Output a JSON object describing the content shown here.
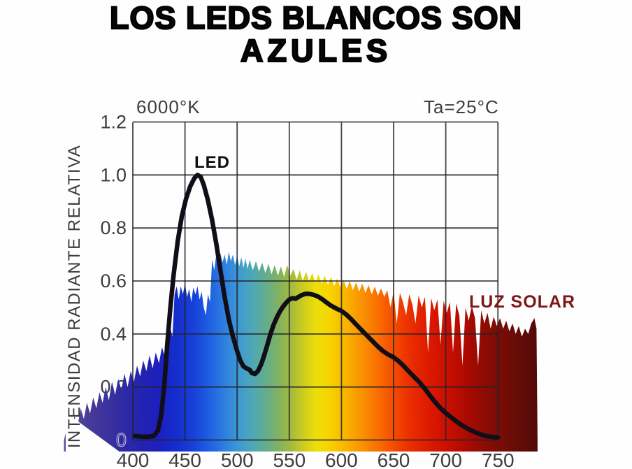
{
  "title": {
    "line1": "LOS LEDS BLANCOS SON",
    "line2": "AZULES"
  },
  "annotations": {
    "color_temp": "6000°K",
    "ambient_temp": "Ta=25°C",
    "led": "LED",
    "solar": "LUZ SOLAR"
  },
  "axis": {
    "y_label": "INTENSIDAD RADIANTE RELATIVA"
  },
  "colors": {
    "title_text": "#070707",
    "axis_text": "#3d3d3d",
    "grid": "#23232d",
    "led_curve": "#120e18",
    "solar_label": "#7d1818",
    "background": "#fefefe"
  },
  "chart_data": {
    "type": "area",
    "title": "LOS LEDS BLANCOS SON AZULES",
    "ylabel": "INTENSIDAD RADIANTE RELATIVA",
    "x_range": [
      400,
      750
    ],
    "y_range": [
      0,
      1.2
    ],
    "grid": true,
    "x_ticks": [
      400,
      450,
      500,
      550,
      600,
      650,
      700,
      750
    ],
    "y_ticks": [
      1.2,
      1.0,
      0.8,
      0.6,
      0.4,
      0.2,
      0
    ],
    "y_tick_labels": [
      "1.2",
      "1.0",
      "0.8",
      "0.6",
      "0.4",
      "0.2",
      "0"
    ],
    "series": [
      {
        "name": "LED",
        "type": "line",
        "color": "#120e18",
        "points": [
          [
            402,
            0.015
          ],
          [
            408,
            0.013
          ],
          [
            414,
            0.012
          ],
          [
            420,
            0.015
          ],
          [
            424,
            0.035
          ],
          [
            427,
            0.09
          ],
          [
            430,
            0.2
          ],
          [
            433,
            0.36
          ],
          [
            436,
            0.5
          ],
          [
            439,
            0.62
          ],
          [
            443,
            0.75
          ],
          [
            447,
            0.845
          ],
          [
            451,
            0.91
          ],
          [
            455,
            0.957
          ],
          [
            459,
            0.988
          ],
          [
            462,
            1.0
          ],
          [
            465,
            0.993
          ],
          [
            468,
            0.962
          ],
          [
            472,
            0.905
          ],
          [
            476,
            0.83
          ],
          [
            480,
            0.74
          ],
          [
            484,
            0.64
          ],
          [
            488,
            0.54
          ],
          [
            492,
            0.455
          ],
          [
            496,
            0.39
          ],
          [
            500,
            0.335
          ],
          [
            503,
            0.3
          ],
          [
            506,
            0.278
          ],
          [
            509,
            0.27
          ],
          [
            512,
            0.265
          ],
          [
            514,
            0.253
          ],
          [
            517,
            0.249
          ],
          [
            520,
            0.26
          ],
          [
            523,
            0.285
          ],
          [
            526,
            0.32
          ],
          [
            529,
            0.36
          ],
          [
            532,
            0.4
          ],
          [
            535,
            0.435
          ],
          [
            538,
            0.462
          ],
          [
            541,
            0.485
          ],
          [
            544,
            0.503
          ],
          [
            547,
            0.518
          ],
          [
            550,
            0.53
          ],
          [
            553,
            0.535
          ],
          [
            556,
            0.533
          ],
          [
            559,
            0.54
          ],
          [
            562,
            0.547
          ],
          [
            566,
            0.552
          ],
          [
            570,
            0.551
          ],
          [
            574,
            0.547
          ],
          [
            578,
            0.54
          ],
          [
            582,
            0.53
          ],
          [
            586,
            0.518
          ],
          [
            590,
            0.507
          ],
          [
            595,
            0.496
          ],
          [
            600,
            0.487
          ],
          [
            605,
            0.472
          ],
          [
            610,
            0.453
          ],
          [
            615,
            0.432
          ],
          [
            620,
            0.412
          ],
          [
            625,
            0.392
          ],
          [
            630,
            0.372
          ],
          [
            635,
            0.352
          ],
          [
            640,
            0.335
          ],
          [
            645,
            0.322
          ],
          [
            650,
            0.312
          ],
          [
            655,
            0.297
          ],
          [
            660,
            0.278
          ],
          [
            665,
            0.257
          ],
          [
            670,
            0.237
          ],
          [
            675,
            0.217
          ],
          [
            680,
            0.193
          ],
          [
            685,
            0.167
          ],
          [
            690,
            0.142
          ],
          [
            695,
            0.12
          ],
          [
            700,
            0.102
          ],
          [
            705,
            0.086
          ],
          [
            710,
            0.071
          ],
          [
            715,
            0.057
          ],
          [
            720,
            0.045
          ],
          [
            725,
            0.035
          ],
          [
            730,
            0.026
          ],
          [
            735,
            0.019
          ],
          [
            740,
            0.014
          ],
          [
            745,
            0.011
          ],
          [
            750,
            0.01
          ]
        ]
      },
      {
        "name": "LUZ SOLAR",
        "type": "area",
        "points": [
          [
            334,
            0
          ],
          [
            338,
            0.06
          ],
          [
            341,
            0.03
          ],
          [
            344,
            0.09
          ],
          [
            347,
            0.05
          ],
          [
            350,
            0.12
          ],
          [
            353,
            0.08
          ],
          [
            356,
            0.14
          ],
          [
            359,
            0.1
          ],
          [
            362,
            0.16
          ],
          [
            365,
            0.12
          ],
          [
            368,
            0.18
          ],
          [
            371,
            0.14
          ],
          [
            374,
            0.2
          ],
          [
            377,
            0.15
          ],
          [
            380,
            0.22
          ],
          [
            383,
            0.17
          ],
          [
            386,
            0.23
          ],
          [
            389,
            0.19
          ],
          [
            392,
            0.25
          ],
          [
            395,
            0.2
          ],
          [
            398,
            0.26
          ],
          [
            401,
            0.22
          ],
          [
            404,
            0.28
          ],
          [
            407,
            0.24
          ],
          [
            410,
            0.3
          ],
          [
            413,
            0.26
          ],
          [
            416,
            0.32
          ],
          [
            419,
            0.27
          ],
          [
            422,
            0.33
          ],
          [
            425,
            0.29
          ],
          [
            428,
            0.35
          ],
          [
            431,
            0.31
          ],
          [
            434,
            0.37
          ],
          [
            436,
            0.42
          ],
          [
            438,
            0.39
          ],
          [
            440,
            0.55
          ],
          [
            442,
            0.58
          ],
          [
            444,
            0.53
          ],
          [
            446,
            0.58
          ],
          [
            448,
            0.55
          ],
          [
            450,
            0.59
          ],
          [
            452,
            0.54
          ],
          [
            454,
            0.57
          ],
          [
            456,
            0.52
          ],
          [
            458,
            0.575
          ],
          [
            460,
            0.55
          ],
          [
            462,
            0.58
          ],
          [
            464,
            0.53
          ],
          [
            466,
            0.56
          ],
          [
            468,
            0.5
          ],
          [
            470,
            0.47
          ],
          [
            472,
            0.55
          ],
          [
            474,
            0.52
          ],
          [
            476,
            0.68
          ],
          [
            478,
            0.64
          ],
          [
            480,
            0.7
          ],
          [
            482,
            0.66
          ],
          [
            484,
            0.705
          ],
          [
            486,
            0.67
          ],
          [
            488,
            0.7
          ],
          [
            490,
            0.66
          ],
          [
            492,
            0.71
          ],
          [
            494,
            0.675
          ],
          [
            496,
            0.7
          ],
          [
            498,
            0.66
          ],
          [
            500,
            0.695
          ],
          [
            502,
            0.655
          ],
          [
            504,
            0.69
          ],
          [
            506,
            0.65
          ],
          [
            508,
            0.685
          ],
          [
            510,
            0.645
          ],
          [
            512,
            0.68
          ],
          [
            515,
            0.64
          ],
          [
            518,
            0.675
          ],
          [
            521,
            0.635
          ],
          [
            524,
            0.67
          ],
          [
            527,
            0.63
          ],
          [
            530,
            0.665
          ],
          [
            533,
            0.625
          ],
          [
            536,
            0.66
          ],
          [
            539,
            0.62
          ],
          [
            542,
            0.655
          ],
          [
            545,
            0.615
          ],
          [
            548,
            0.66
          ],
          [
            551,
            0.62
          ],
          [
            554,
            0.645
          ],
          [
            557,
            0.605
          ],
          [
            560,
            0.64
          ],
          [
            563,
            0.6
          ],
          [
            566,
            0.635
          ],
          [
            569,
            0.6
          ],
          [
            572,
            0.63
          ],
          [
            575,
            0.595
          ],
          [
            578,
            0.625
          ],
          [
            581,
            0.59
          ],
          [
            584,
            0.62
          ],
          [
            587,
            0.585
          ],
          [
            590,
            0.615
          ],
          [
            593,
            0.58
          ],
          [
            596,
            0.61
          ],
          [
            599,
            0.575
          ],
          [
            602,
            0.605
          ],
          [
            605,
            0.57
          ],
          [
            608,
            0.6
          ],
          [
            611,
            0.565
          ],
          [
            614,
            0.595
          ],
          [
            617,
            0.56
          ],
          [
            620,
            0.59
          ],
          [
            623,
            0.555
          ],
          [
            626,
            0.585
          ],
          [
            629,
            0.55
          ],
          [
            632,
            0.578
          ],
          [
            635,
            0.545
          ],
          [
            638,
            0.572
          ],
          [
            641,
            0.54
          ],
          [
            644,
            0.565
          ],
          [
            647,
            0.5
          ],
          [
            650,
            0.56
          ],
          [
            653,
            0.44
          ],
          [
            656,
            0.555
          ],
          [
            659,
            0.52
          ],
          [
            662,
            0.47
          ],
          [
            665,
            0.55
          ],
          [
            668,
            0.51
          ],
          [
            671,
            0.44
          ],
          [
            674,
            0.545
          ],
          [
            677,
            0.5
          ],
          [
            680,
            0.54
          ],
          [
            683,
            0.33
          ],
          [
            686,
            0.535
          ],
          [
            689,
            0.49
          ],
          [
            692,
            0.53
          ],
          [
            695,
            0.36
          ],
          [
            698,
            0.525
          ],
          [
            701,
            0.48
          ],
          [
            704,
            0.52
          ],
          [
            707,
            0.33
          ],
          [
            710,
            0.515
          ],
          [
            713,
            0.47
          ],
          [
            716,
            0.28
          ],
          [
            719,
            0.5
          ],
          [
            722,
            0.45
          ],
          [
            725,
            0.505
          ],
          [
            728,
            0.46
          ],
          [
            731,
            0.28
          ],
          [
            734,
            0.49
          ],
          [
            737,
            0.44
          ],
          [
            740,
            0.48
          ],
          [
            743,
            0.42
          ],
          [
            746,
            0.465
          ],
          [
            749,
            0.43
          ],
          [
            752,
            0.46
          ],
          [
            755,
            0.42
          ],
          [
            758,
            0.45
          ],
          [
            761,
            0.41
          ],
          [
            764,
            0.44
          ],
          [
            767,
            0.4
          ],
          [
            770,
            0.43
          ],
          [
            773,
            0.39
          ],
          [
            776,
            0.42
          ],
          [
            779,
            0.4
          ],
          [
            782,
            0.44
          ],
          [
            785,
            0.46
          ],
          [
            787,
            0.42
          ],
          [
            788,
            0
          ]
        ],
        "gradient": [
          [
            334,
            "#5a4f9b"
          ],
          [
            360,
            "#463a97"
          ],
          [
            385,
            "#342da0"
          ],
          [
            405,
            "#2424ae"
          ],
          [
            425,
            "#1c1fbe"
          ],
          [
            442,
            "#162ecf"
          ],
          [
            458,
            "#1741d8"
          ],
          [
            472,
            "#1e5ce2"
          ],
          [
            488,
            "#2f7fe0"
          ],
          [
            502,
            "#3e9ad2"
          ],
          [
            515,
            "#4fa8b4"
          ],
          [
            528,
            "#64ad8d"
          ],
          [
            540,
            "#82b25f"
          ],
          [
            552,
            "#a4bb3e"
          ],
          [
            564,
            "#cfcd1d"
          ],
          [
            576,
            "#ecdf0a"
          ],
          [
            588,
            "#f7d400"
          ],
          [
            600,
            "#f9bc00"
          ],
          [
            612,
            "#f9a300"
          ],
          [
            624,
            "#f98800"
          ],
          [
            636,
            "#f96c00"
          ],
          [
            648,
            "#f55000"
          ],
          [
            660,
            "#ee3800"
          ],
          [
            672,
            "#e62600"
          ],
          [
            684,
            "#dc1a00"
          ],
          [
            696,
            "#cf1200"
          ],
          [
            708,
            "#c00d00"
          ],
          [
            720,
            "#ab0a01"
          ],
          [
            732,
            "#950b02"
          ],
          [
            744,
            "#820c04"
          ],
          [
            756,
            "#740d06"
          ],
          [
            770,
            "#640c07"
          ],
          [
            788,
            "#530a08"
          ]
        ]
      }
    ]
  }
}
